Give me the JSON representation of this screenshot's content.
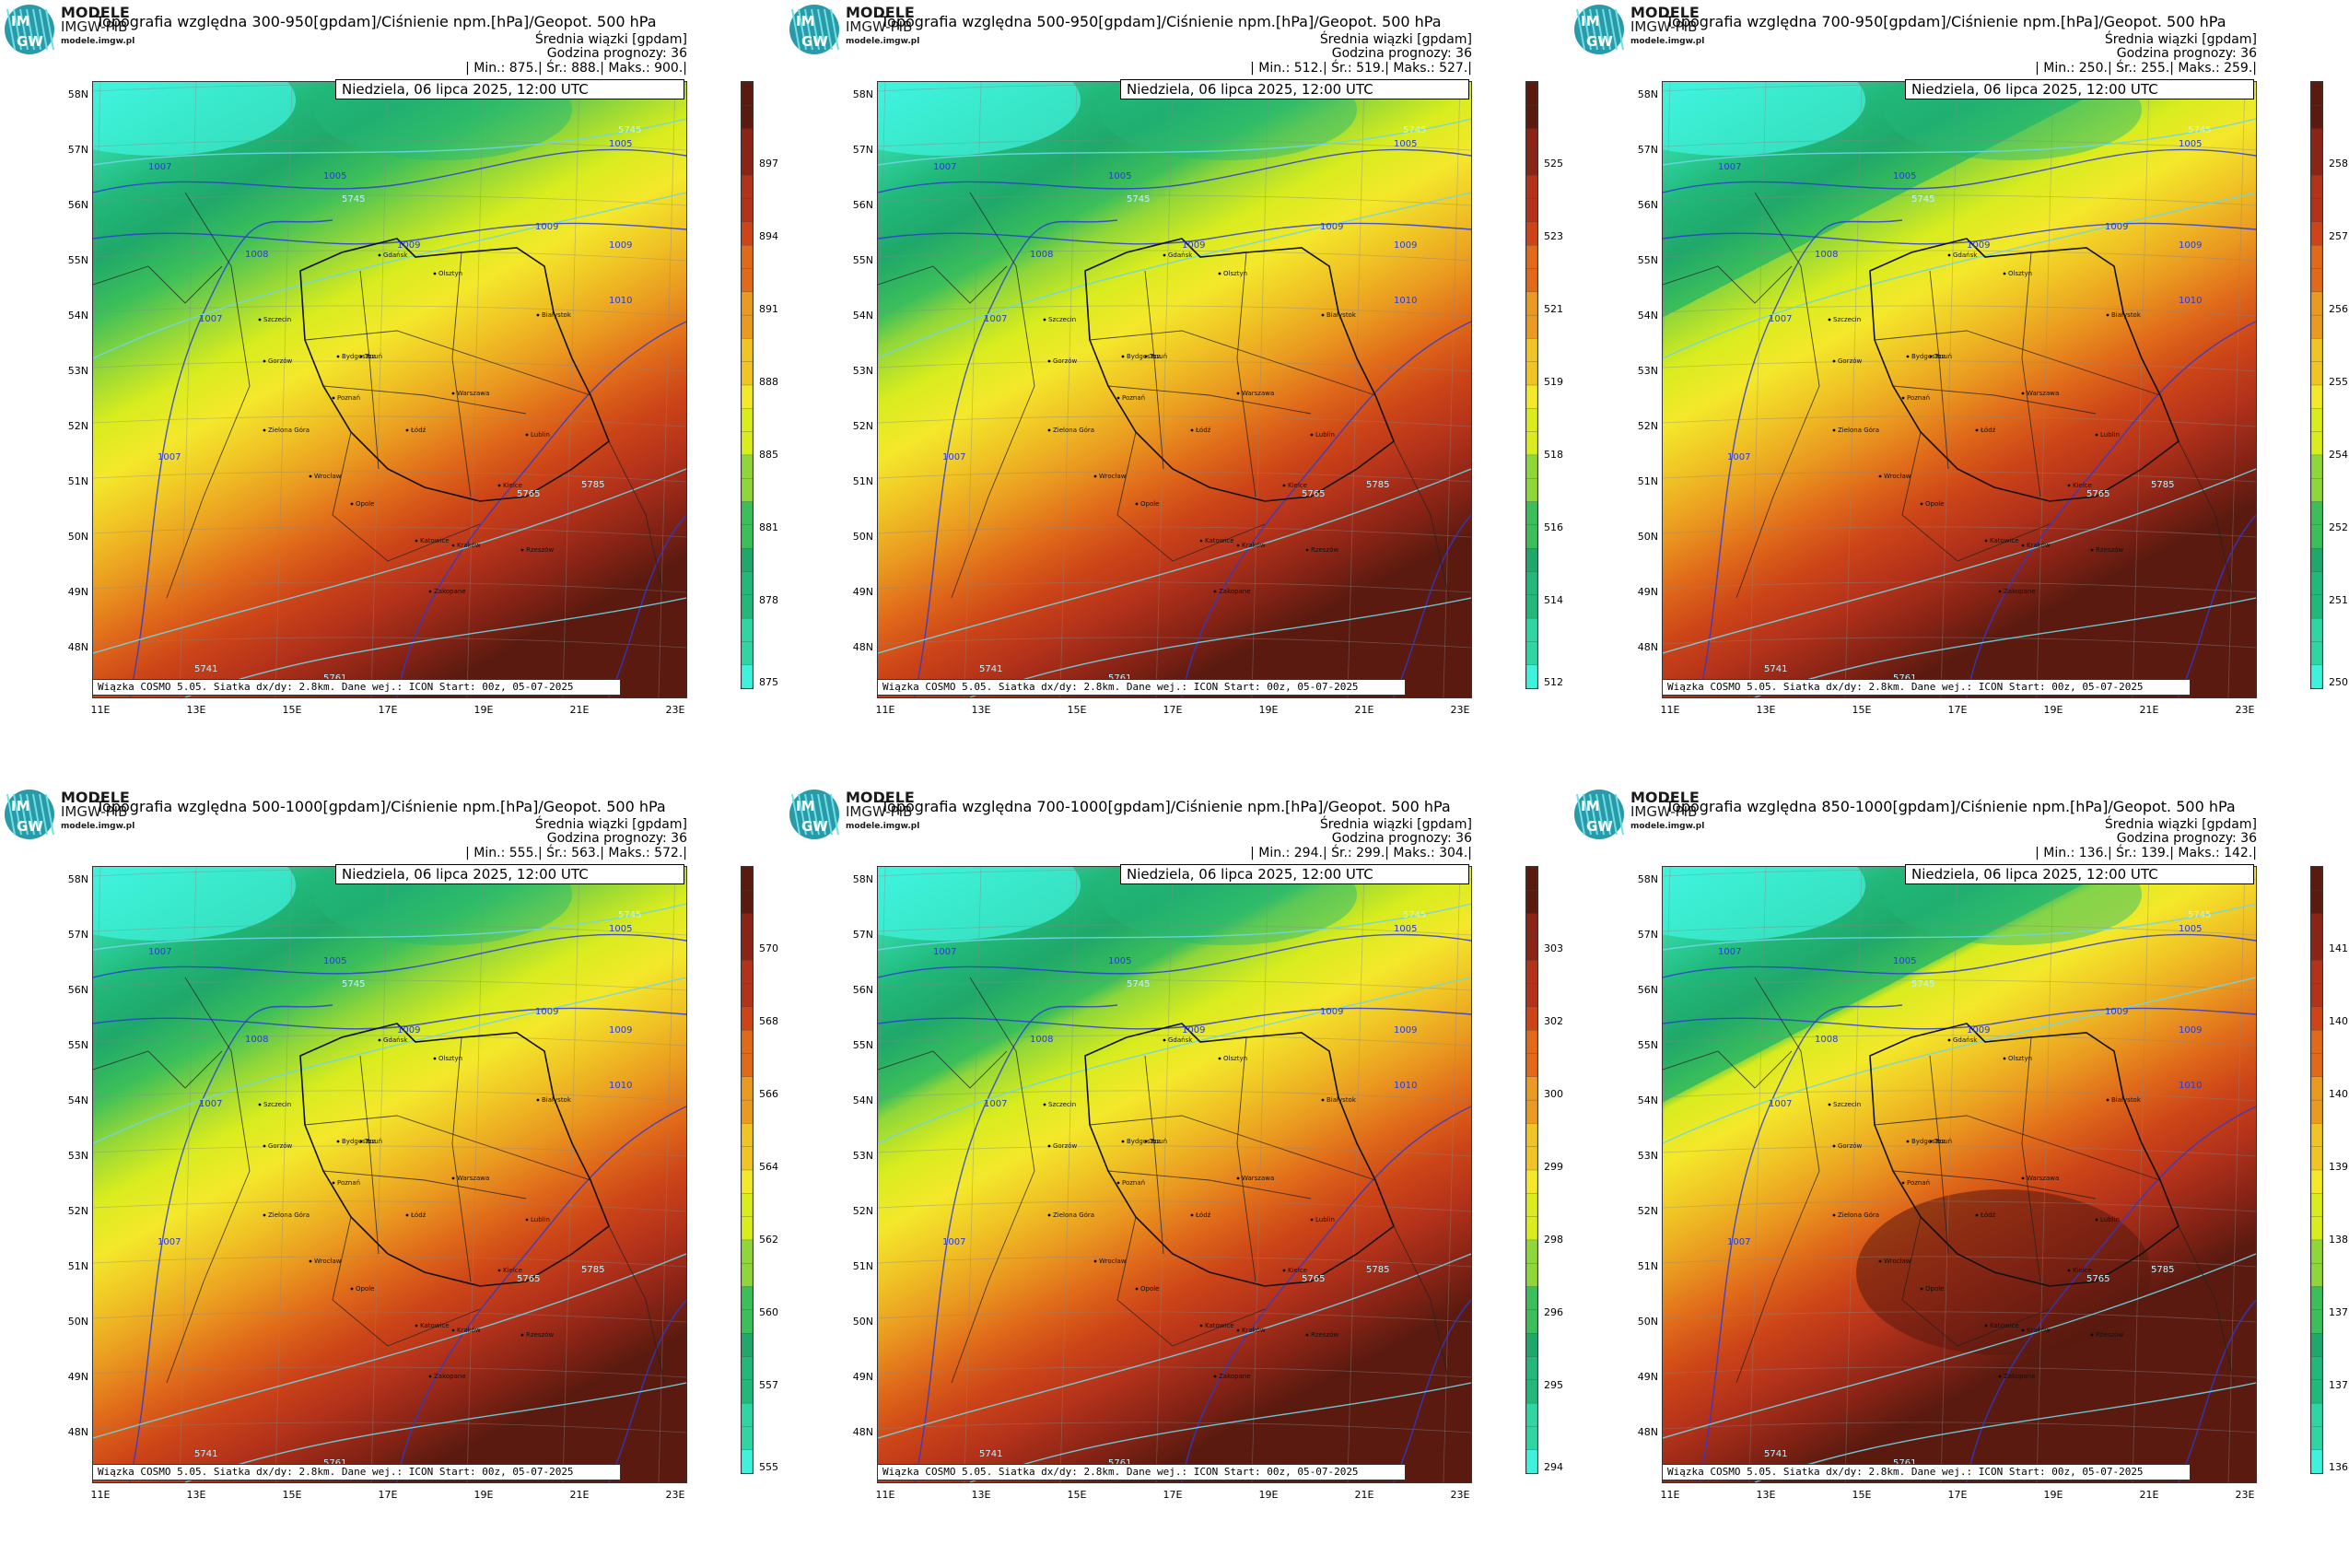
{
  "brand": {
    "line1": "MODELE",
    "line2": "IMGW-PIB",
    "url": "modele.imgw.pl",
    "logo_text_top": "IM",
    "logo_text_bottom": "GW"
  },
  "colors": {
    "ramp": [
      "#3ff2dc",
      "#2fd6a3",
      "#21b87a",
      "#1fa86a",
      "#3cbf5a",
      "#8fd63a",
      "#d8ec1e",
      "#f4e82b",
      "#f0c425",
      "#ea9a20",
      "#e06a1a",
      "#cc4418",
      "#b3321a",
      "#8a2416",
      "#5a1a0f"
    ],
    "pressure_contour": "#2b3bd6",
    "geopot_contour": "#6fd6e6",
    "border": "#111111"
  },
  "common": {
    "subtitle1": "Średnia wiązki [gpdam]",
    "subtitle2": "Godzina prognozy: 36",
    "min_label": "| Min.:",
    "mean_label": "| Śr.:",
    "max_label": "| Maks.:",
    "end_bar": "|",
    "date": "Niedziela, 06 lipca 2025, 12:00 UTC",
    "model_info": "Wiązka COSMO 5.05. Siatka dx/dy: 2.8km. Dane wej.: ICON Start: 00z, 05-07-2025",
    "lat_labels": [
      "58N",
      "57N",
      "56N",
      "55N",
      "54N",
      "53N",
      "52N",
      "51N",
      "50N",
      "49N",
      "48N"
    ],
    "lon_labels": [
      "11E",
      "13E",
      "15E",
      "17E",
      "19E",
      "21E",
      "23E"
    ],
    "cities": [
      "Gdańsk",
      "Olsztyn",
      "Szczecin",
      "Białystok",
      "Bydgoszcz",
      "Toruń",
      "Gorzów",
      "Poznań",
      "Warszawa",
      "Zielona Góra",
      "Łódź",
      "Lublin",
      "Wrocław",
      "Kielce",
      "Opole",
      "Katowice",
      "Kraków",
      "Rzeszów",
      "Zakopane"
    ],
    "isobars": [
      "1005",
      "1005",
      "1007",
      "1007",
      "1007",
      "1008",
      "1009",
      "1009",
      "1009",
      "1010"
    ],
    "geopot": [
      "5745",
      "5741",
      "5745",
      "5761",
      "5765",
      "5769",
      "5785"
    ]
  },
  "panels": [
    {
      "title": "Topografia względna 300-950[gpdam]/Ciśnienie npm.[hPa]/Geopot. 500 hPa",
      "min": "875.",
      "mean": "888.",
      "max": "900.",
      "ticks": [
        "897",
        "894",
        "891",
        "888",
        "885",
        "881",
        "878",
        "875"
      ]
    },
    {
      "title": "Topografia względna 500-950[gpdam]/Ciśnienie npm.[hPa]/Geopot. 500 hPa",
      "min": "512.",
      "mean": "519.",
      "max": "527.",
      "ticks": [
        "525",
        "523",
        "521",
        "519",
        "518",
        "516",
        "514",
        "512"
      ]
    },
    {
      "title": "Topografia względna 700-950[gpdam]/Ciśnienie npm.[hPa]/Geopot. 500 hPa",
      "min": "250.",
      "mean": "255.",
      "max": "259.",
      "ticks": [
        "258",
        "257",
        "256",
        "255",
        "254",
        "252",
        "251",
        "250"
      ]
    },
    {
      "title": "Topografia względna 500-1000[gpdam]/Ciśnienie npm.[hPa]/Geopot. 500 hPa",
      "min": "555.",
      "mean": "563.",
      "max": "572.",
      "ticks": [
        "570",
        "568",
        "566",
        "564",
        "562",
        "560",
        "557",
        "555"
      ]
    },
    {
      "title": "Topografia względna 700-1000[gpdam]/Ciśnienie npm.[hPa]/Geopot. 500 hPa",
      "min": "294.",
      "mean": "299.",
      "max": "304.",
      "ticks": [
        "303",
        "302",
        "300",
        "299",
        "298",
        "296",
        "295",
        "294"
      ]
    },
    {
      "title": "Topografia względna 850-1000[gpdam]/Ciśnienie npm.[hPa]/Geopot. 500 hPa",
      "min": "136.",
      "mean": "139.",
      "max": "142.",
      "ticks": [
        "141",
        "140",
        "140",
        "139",
        "138",
        "137",
        "137",
        "136"
      ]
    }
  ]
}
